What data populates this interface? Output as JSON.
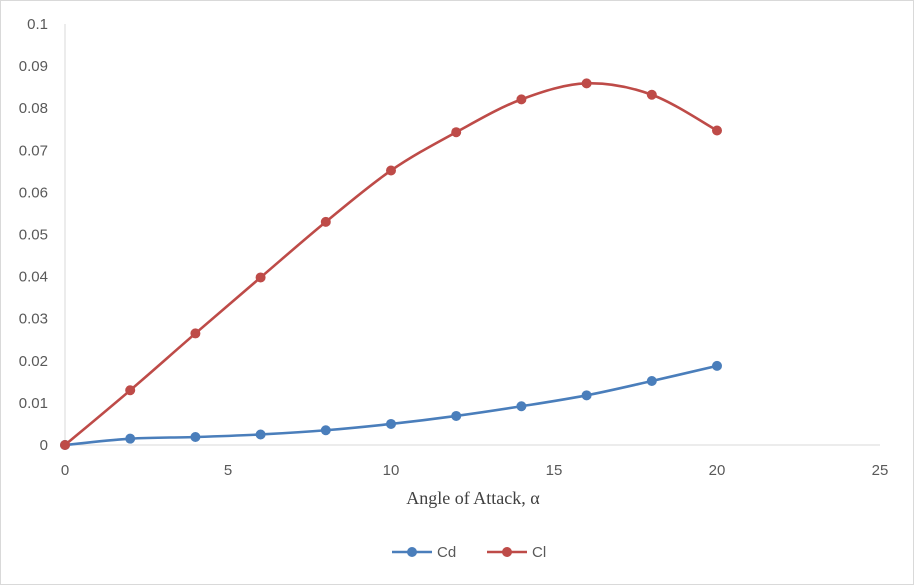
{
  "chart_data": {
    "type": "line",
    "title": "",
    "xlabel": "Angle of Attack, α",
    "ylabel": "",
    "xlim": [
      0,
      25
    ],
    "ylim": [
      0,
      0.1
    ],
    "x_ticks": [
      "0",
      "5",
      "10",
      "15",
      "20",
      "25"
    ],
    "y_ticks": [
      "0",
      "0.01",
      "0.02",
      "0.03",
      "0.04",
      "0.05",
      "0.06",
      "0.07",
      "0.08",
      "0.09",
      "0.1"
    ],
    "grid": false,
    "smooth": true,
    "legend_position": "bottom",
    "x": [
      0,
      2,
      4,
      6,
      8,
      10,
      12,
      14,
      16,
      18,
      20
    ],
    "series": [
      {
        "name": "Cd",
        "color": "#4a7ebb",
        "values": [
          0.0,
          0.0015,
          0.0019,
          0.0025,
          0.0035,
          0.005,
          0.0069,
          0.0092,
          0.0118,
          0.0152,
          0.0188
        ]
      },
      {
        "name": "Cl",
        "color": "#be4b48",
        "values": [
          0.0,
          0.013,
          0.0265,
          0.0398,
          0.053,
          0.0652,
          0.0743,
          0.0821,
          0.0859,
          0.0832,
          0.0747
        ]
      }
    ]
  }
}
